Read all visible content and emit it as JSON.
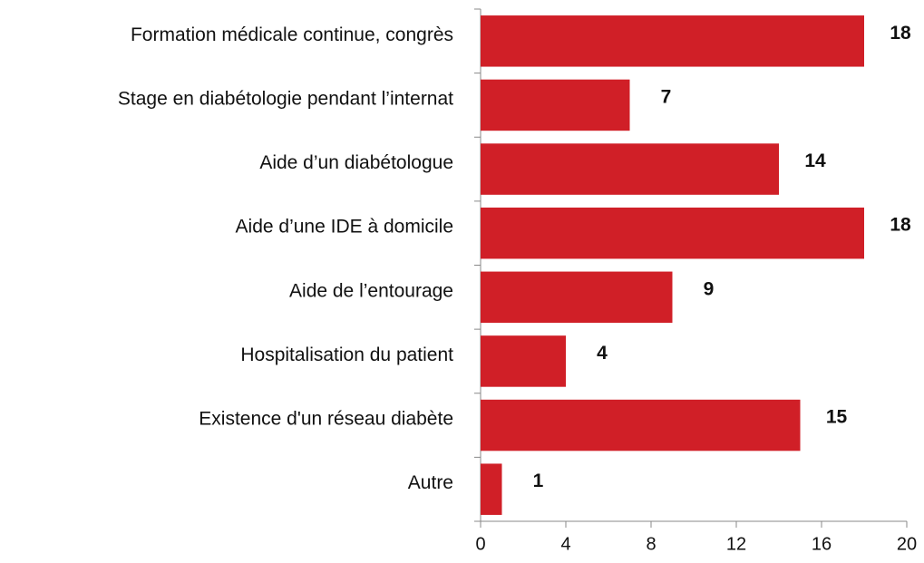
{
  "chart_data": {
    "type": "bar",
    "orientation": "horizontal",
    "categories": [
      "Formation médicale continue, congrès",
      "Stage en diabétologie pendant l’internat",
      "Aide d’un diabétologue",
      "Aide d’une IDE à domicile",
      "Aide de l’entourage",
      "Hospitalisation du patient",
      "Existence d'un réseau diabète",
      "Autre"
    ],
    "values": [
      18,
      7,
      14,
      18,
      9,
      4,
      15,
      1
    ],
    "color": "#d01f27",
    "xlim": [
      0,
      20
    ],
    "xticks": [
      0,
      4,
      8,
      12,
      16,
      20
    ],
    "grid": false
  }
}
